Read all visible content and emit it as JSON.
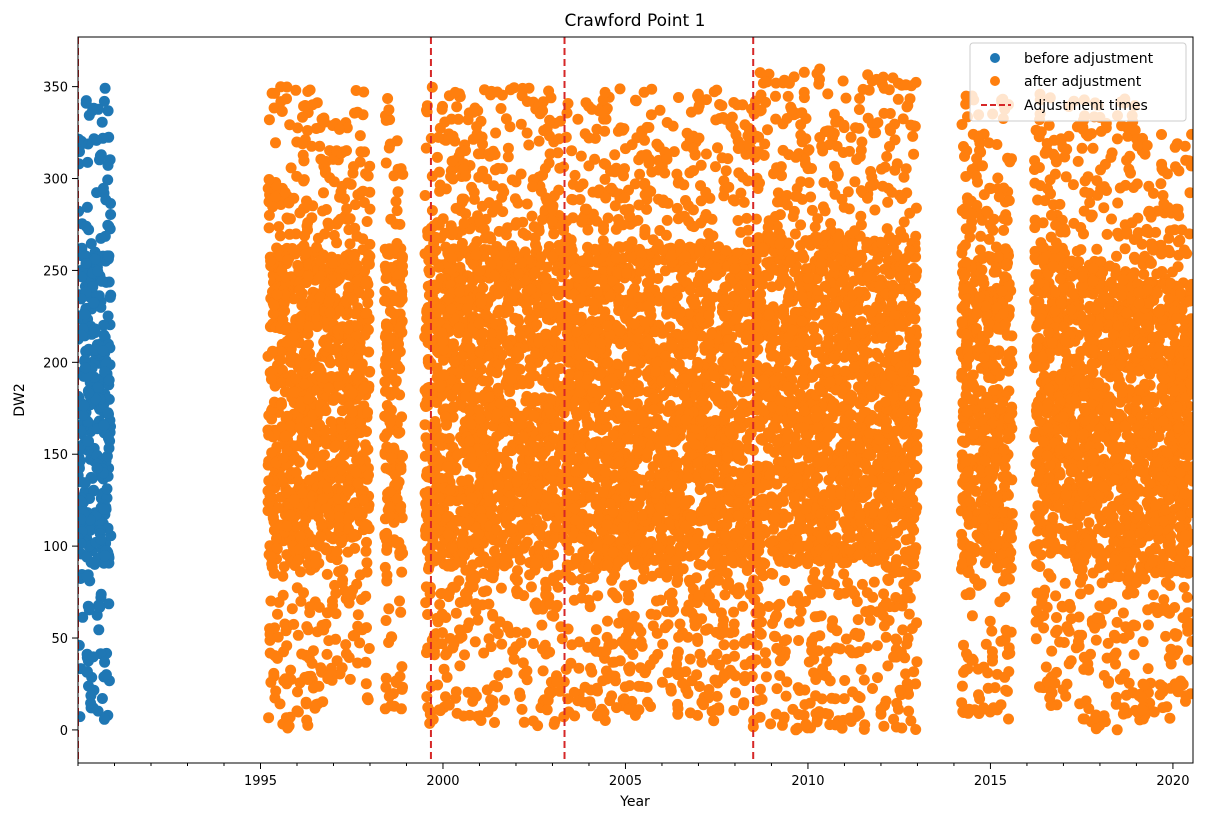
{
  "chart_data": {
    "type": "scatter",
    "title": "Crawford Point 1",
    "xlabel": "Year",
    "ylabel": "DW2",
    "xlim": [
      1990.0,
      2020.55
    ],
    "ylim": [
      -18,
      377
    ],
    "x_ticks": [
      1995,
      2000,
      2005,
      2010,
      2015,
      2020
    ],
    "x_tick_labels": [
      "1995",
      "2000",
      "2005",
      "2010",
      "2015",
      "2020"
    ],
    "y_ticks": [
      0,
      50,
      100,
      150,
      200,
      250,
      300,
      350
    ],
    "y_tick_labels": [
      "0",
      "50",
      "100",
      "150",
      "200",
      "250",
      "300",
      "350"
    ],
    "grid": false,
    "legend_position": "top-right",
    "series": [
      {
        "name": "before adjustment",
        "marker": "circle",
        "color": "#1f77b4",
        "clusters": [
          {
            "x_range": [
              1990.0,
              1990.9
            ],
            "y_range": [
              3,
              350
            ]
          }
        ]
      },
      {
        "name": "after adjustment",
        "marker": "circle",
        "color": "#ff7f0e",
        "clusters": [
          {
            "x_range": [
              1995.2,
              1996.6
            ],
            "y_range": [
              1,
              350
            ]
          },
          {
            "x_range": [
              1996.6,
              1997.4
            ],
            "y_range": [
              15,
              340
            ]
          },
          {
            "x_range": [
              1997.4,
              1998.0
            ],
            "y_range": [
              15,
              348
            ]
          },
          {
            "x_range": [
              1998.4,
              1998.9
            ],
            "y_range": [
              10,
              346
            ]
          },
          {
            "x_range": [
              1999.5,
              2002.8
            ],
            "y_range": [
              2,
              350
            ]
          },
          {
            "x_range": [
              2002.8,
              2007.7
            ],
            "y_range": [
              3,
              350
            ]
          },
          {
            "x_range": [
              2007.7,
              2008.5
            ],
            "y_range": [
              5,
              347
            ]
          },
          {
            "x_range": [
              2008.5,
              2013.0
            ],
            "y_range": [
              0,
              360
            ]
          },
          {
            "x_range": [
              2014.2,
              2015.6
            ],
            "y_range": [
              5,
              345
            ]
          },
          {
            "x_range": [
              2016.2,
              2017.5
            ],
            "y_range": [
              10,
              346
            ]
          },
          {
            "x_range": [
              2017.5,
              2019.0
            ],
            "y_range": [
              0,
              345
            ]
          },
          {
            "x_range": [
              2019.0,
              2020.55
            ],
            "y_range": [
              5,
              325
            ]
          }
        ]
      }
    ],
    "vlines": {
      "name": "Adjustment times",
      "color": "#d62728",
      "style": "dashed",
      "x": [
        1990.0,
        1999.67,
        2003.33,
        2008.5
      ]
    }
  }
}
